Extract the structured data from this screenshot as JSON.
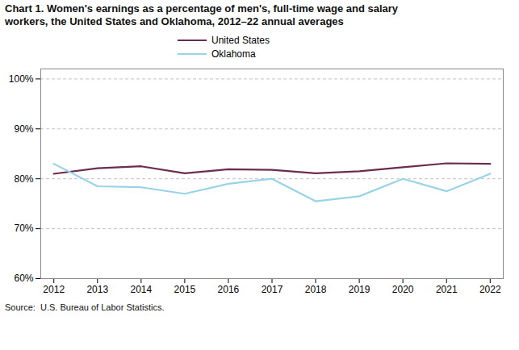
{
  "chart_data": {
    "type": "line",
    "title": "Chart 1. Women's earnings as a percentage of men's, full-time wage and salary",
    "subtitle": "workers, the United States and Oklahoma, 2012–22 annual averages",
    "caption": "Source:  U.S. Bureau of Labor Statistics.",
    "x": [
      2012,
      2013,
      2014,
      2015,
      2016,
      2017,
      2018,
      2019,
      2020,
      2021,
      2022
    ],
    "series": [
      {
        "name": "United States",
        "color": "#6b2d4e",
        "values": [
          81.0,
          82.1,
          82.5,
          81.1,
          81.9,
          81.8,
          81.1,
          81.5,
          82.3,
          83.1,
          83.0
        ]
      },
      {
        "name": "Oklahoma",
        "color": "#99d3e8",
        "values": [
          83.0,
          78.5,
          78.3,
          77.0,
          79.0,
          80.0,
          75.5,
          76.5,
          80.0,
          77.5,
          81.0
        ]
      }
    ],
    "xlim": [
      2011.7,
      2022.3
    ],
    "xticks": [
      2012,
      2013,
      2014,
      2015,
      2016,
      2017,
      2018,
      2019,
      2020,
      2021,
      2022
    ],
    "ylim": [
      60,
      102
    ],
    "yticks": [
      {
        "value": 60,
        "label": "60%"
      },
      {
        "value": 70,
        "label": "70%"
      },
      {
        "value": 80,
        "label": "80%"
      },
      {
        "value": 90,
        "label": "90%"
      },
      {
        "value": 100,
        "label": "100%"
      }
    ],
    "grid": true,
    "legend": "top"
  }
}
